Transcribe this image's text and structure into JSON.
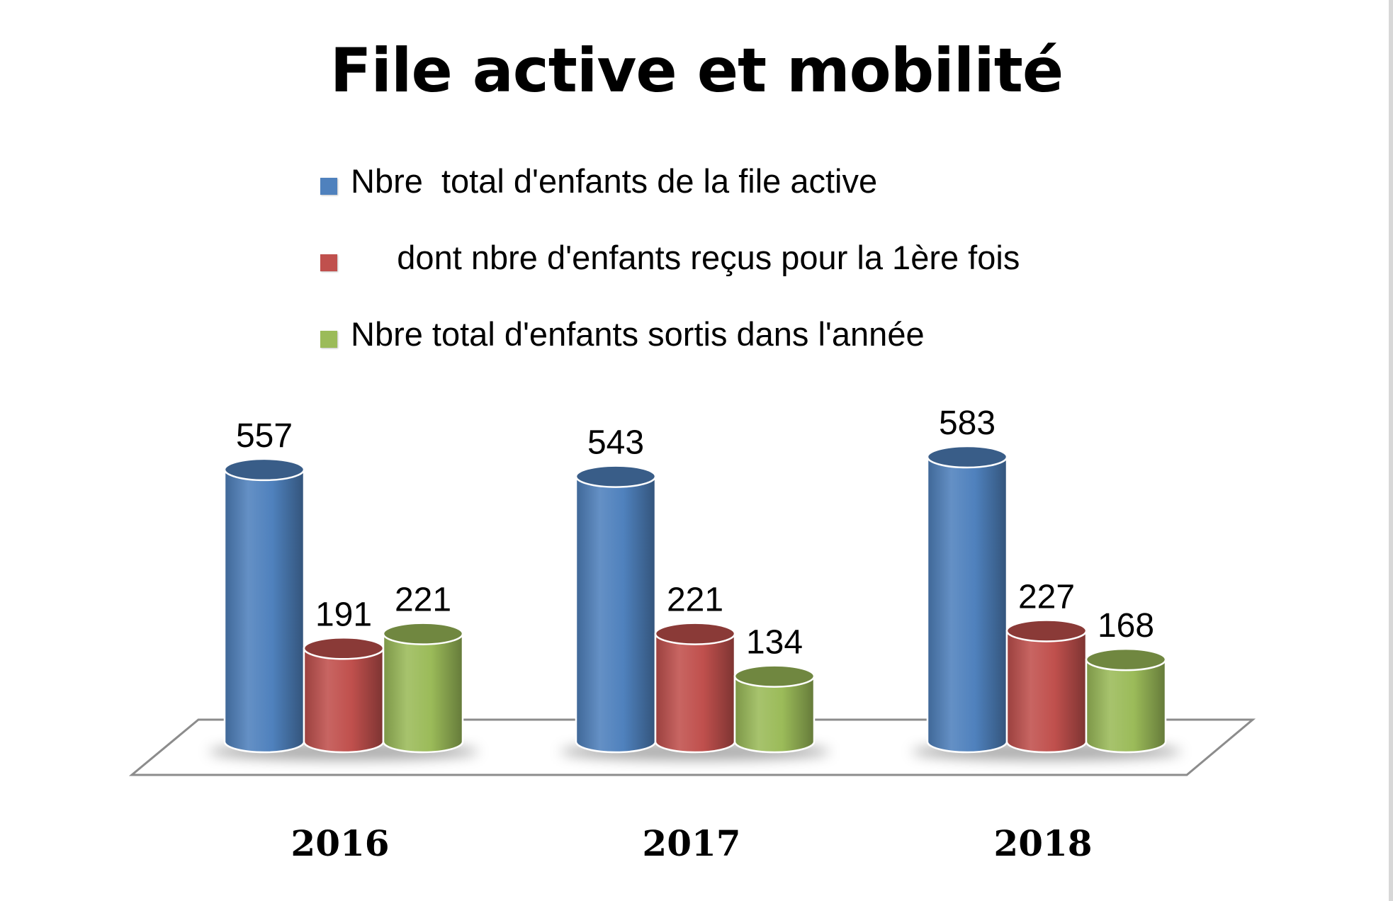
{
  "chart_data": {
    "type": "bar",
    "title": "File active et mobilité",
    "categories": [
      "2016",
      "2017",
      "2018"
    ],
    "series": [
      {
        "name": "Nbre  total d'enfants de la file active",
        "values": [
          557,
          543,
          583
        ],
        "color": "#4f81bd"
      },
      {
        "name": "     dont nbre d'enfants reçus pour la 1ère fois",
        "values": [
          191,
          221,
          227
        ],
        "color": "#c0504d"
      },
      {
        "name": "Nbre total d'enfants sortis dans l'année",
        "values": [
          221,
          134,
          168
        ],
        "color": "#9bbb59"
      }
    ],
    "data_labels": true,
    "legend_position": "top",
    "style": "3d-cylinder",
    "grid": false,
    "xlabel": "",
    "ylabel": ""
  }
}
